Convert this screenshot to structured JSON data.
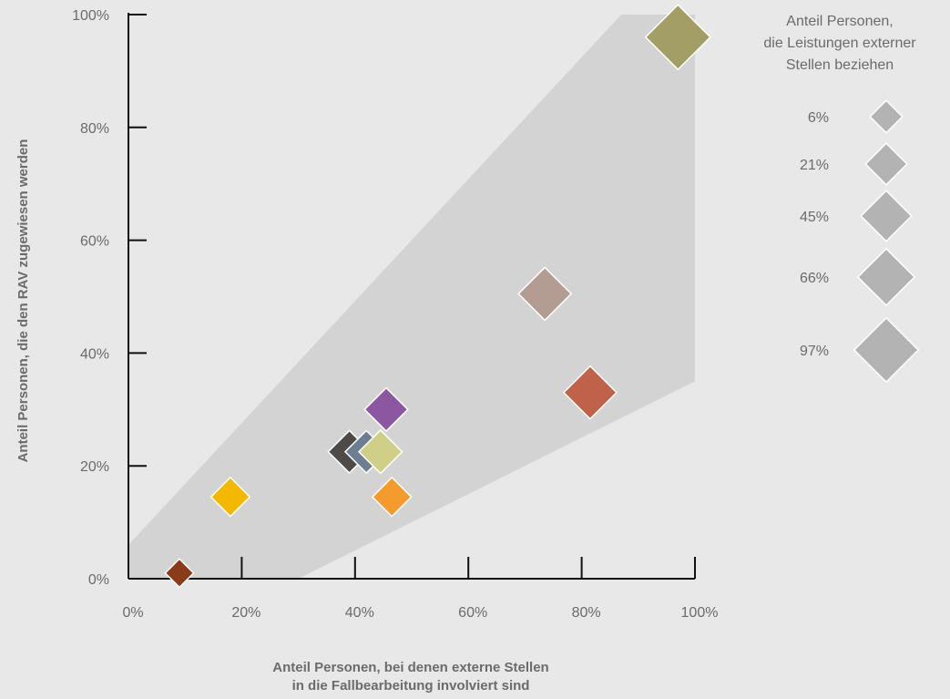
{
  "chart_data": {
    "type": "scatter",
    "x_axis": {
      "title_lines": [
        "Anteil Personen, bei denen externe Stellen",
        "in die Fallbearbeitung involviert sind"
      ],
      "ticks": [
        0,
        20,
        40,
        60,
        80,
        100
      ],
      "tick_labels": [
        "0%",
        "20%",
        "40%",
        "60%",
        "80%",
        "100%"
      ],
      "range": [
        0,
        100
      ]
    },
    "y_axis": {
      "title": "Anteil Personen, die den RAV zugewiesen werden",
      "ticks": [
        0,
        20,
        40,
        60,
        80,
        100
      ],
      "tick_labels": [
        "0%",
        "20%",
        "40%",
        "60%",
        "80%",
        "100%"
      ],
      "range": [
        0,
        100
      ]
    },
    "band": {
      "color": "#d3d3d3",
      "polygon": [
        [
          0,
          6
        ],
        [
          87,
          100
        ],
        [
          100,
          100
        ],
        [
          100,
          35
        ],
        [
          30,
          0
        ],
        [
          0,
          0
        ]
      ]
    },
    "marker_shape": "diamond",
    "points": [
      {
        "x": 9,
        "y": 1,
        "size": 6,
        "color": "#8b3a1a"
      },
      {
        "x": 18,
        "y": 14.5,
        "size": 21,
        "color": "#f5b800"
      },
      {
        "x": 39,
        "y": 22.5,
        "size": 28,
        "color": "#4d4a47"
      },
      {
        "x": 42,
        "y": 22.5,
        "size": 28,
        "color": "#6e7e91"
      },
      {
        "x": 44.5,
        "y": 22.5,
        "size": 30,
        "color": "#cfcf88"
      },
      {
        "x": 46.5,
        "y": 14.5,
        "size": 21,
        "color": "#f39c2d"
      },
      {
        "x": 45.5,
        "y": 30,
        "size": 30,
        "color": "#8c56a0"
      },
      {
        "x": 73.5,
        "y": 50.5,
        "size": 55,
        "color": "#b39d93"
      },
      {
        "x": 81.5,
        "y": 33,
        "size": 55,
        "color": "#c0624a"
      },
      {
        "x": 97,
        "y": 96,
        "size": 97,
        "color": "#a39d66"
      }
    ],
    "legend": {
      "title_lines": [
        "Anteil Personen,",
        "die Leistungen externer",
        "Stellen beziehen"
      ],
      "color": "#b3b3b3",
      "placement": "right",
      "items": [
        {
          "label": "6%",
          "size": 6
        },
        {
          "label": "21%",
          "size": 21
        },
        {
          "label": "45%",
          "size": 45
        },
        {
          "label": "66%",
          "size": 66
        },
        {
          "label": "97%",
          "size": 97
        }
      ]
    }
  }
}
